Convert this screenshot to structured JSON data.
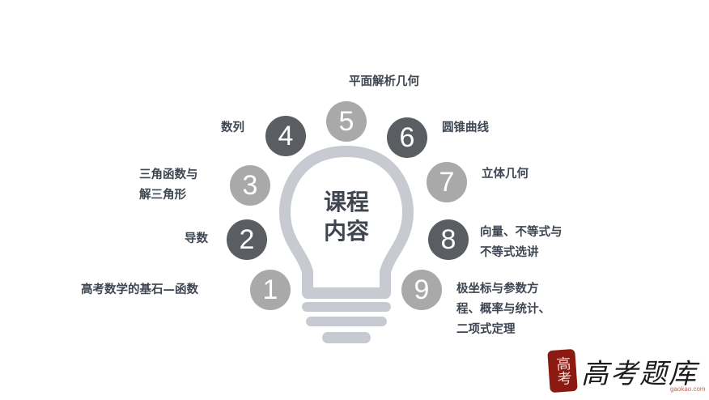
{
  "center": {
    "line1": "课程",
    "line2": "内容"
  },
  "topics": [
    {
      "num": "1",
      "label": "高考数学的基石—函数"
    },
    {
      "num": "2",
      "label": "导数"
    },
    {
      "num": "3",
      "label_lines": [
        "三角函数与",
        "解三角形"
      ]
    },
    {
      "num": "4",
      "label": "数列"
    },
    {
      "num": "5",
      "label": "平面解析几何"
    },
    {
      "num": "6",
      "label": "圆锥曲线"
    },
    {
      "num": "7",
      "label": "立体几何"
    },
    {
      "num": "8",
      "label_lines": [
        "向量、不等式与",
        "不等式选讲"
      ]
    },
    {
      "num": "9",
      "label_lines": [
        "极坐标与参数方",
        "程、概率与统计、",
        "二项式定理"
      ]
    }
  ],
  "logo": {
    "seal": "高考",
    "text": "高考题库",
    "sub": "gaokao.com"
  },
  "colors": {
    "light_circle": "#a9a9a9",
    "dark_circle": "#5a5d61",
    "bulb": "#c7cbd1",
    "text": "#3e4652"
  }
}
